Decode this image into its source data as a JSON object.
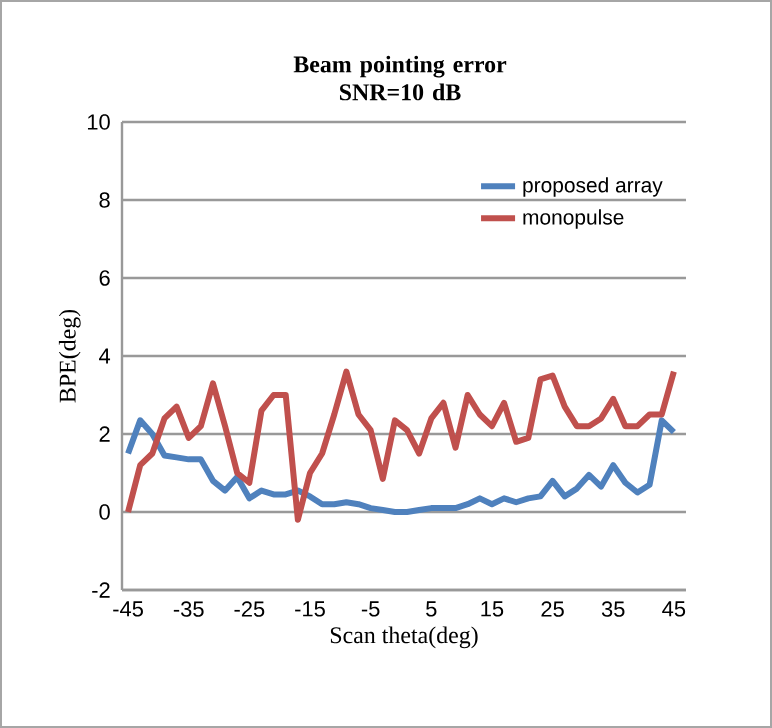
{
  "chart_data": {
    "type": "line",
    "title": "Beam pointing error\nSNR=10 dB",
    "xlabel": "Scan theta(deg)",
    "ylabel": "BPE(deg)",
    "x": [
      -45,
      -43,
      -41,
      -39,
      -37,
      -35,
      -33,
      -31,
      -29,
      -27,
      -25,
      -23,
      -21,
      -19,
      -17,
      -15,
      -13,
      -11,
      -9,
      -7,
      -5,
      -3,
      -1,
      1,
      3,
      5,
      7,
      9,
      11,
      13,
      15,
      17,
      19,
      21,
      23,
      25,
      27,
      29,
      31,
      33,
      35,
      37,
      39,
      41,
      43,
      45
    ],
    "series": [
      {
        "name": "proposed array",
        "color": "#4f81bd",
        "values": [
          1.5,
          2.35,
          2.0,
          1.45,
          1.4,
          1.35,
          1.35,
          0.8,
          0.55,
          0.9,
          0.35,
          0.55,
          0.45,
          0.45,
          0.55,
          0.4,
          0.2,
          0.2,
          0.25,
          0.2,
          0.1,
          0.05,
          0.0,
          0.0,
          0.05,
          0.1,
          0.1,
          0.1,
          0.2,
          0.35,
          0.2,
          0.35,
          0.25,
          0.35,
          0.4,
          0.8,
          0.4,
          0.6,
          0.95,
          0.65,
          1.2,
          0.75,
          0.5,
          0.7,
          2.35,
          2.05
        ]
      },
      {
        "name": "monopulse",
        "color": "#c0504d",
        "values": [
          0.0,
          1.2,
          1.5,
          2.4,
          2.7,
          1.9,
          2.2,
          3.3,
          2.2,
          1.0,
          0.75,
          2.6,
          3.0,
          3.0,
          -0.2,
          1.0,
          1.5,
          2.5,
          3.6,
          2.5,
          2.1,
          0.85,
          2.35,
          2.1,
          1.5,
          2.4,
          2.8,
          1.65,
          3.0,
          2.5,
          2.2,
          2.8,
          1.8,
          1.9,
          3.4,
          3.5,
          2.7,
          2.2,
          2.2,
          2.4,
          2.9,
          2.2,
          2.2,
          2.5,
          2.5,
          3.6
        ]
      }
    ],
    "xlim": [
      -46,
      47
    ],
    "xticks": [
      -45,
      -35,
      -25,
      -15,
      -5,
      5,
      15,
      25,
      35,
      45
    ],
    "ylim": [
      -2,
      10
    ],
    "yticks": [
      -2,
      0,
      2,
      4,
      6,
      8,
      10
    ],
    "grid": "y",
    "legend": "right",
    "marker": "none",
    "line_style": "solid"
  }
}
